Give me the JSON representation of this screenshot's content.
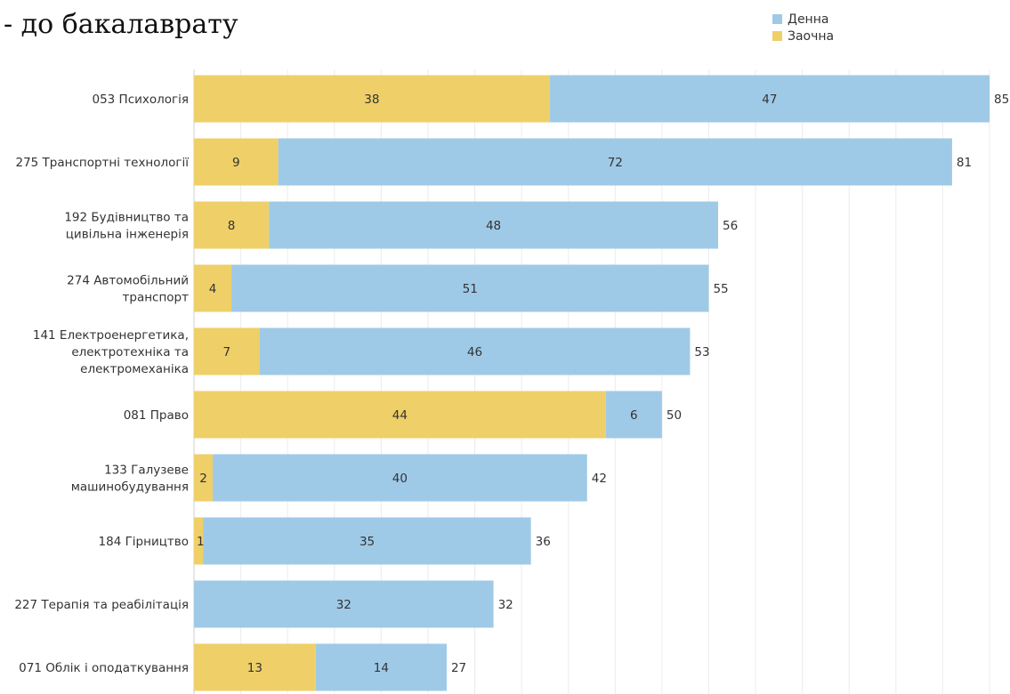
{
  "chart_data": {
    "type": "bar",
    "orientation": "horizontal",
    "stacked": true,
    "title": "- до бакалаврату",
    "categories": [
      [
        "053 Психологія"
      ],
      [
        "275 Транспортні технології"
      ],
      [
        "192 Будівництво та",
        "цивільна інженерія"
      ],
      [
        "274 Автомобільний",
        "транспорт"
      ],
      [
        "141 Електроенергетика,",
        "електротехніка та",
        "електромеханіка"
      ],
      [
        "081 Право"
      ],
      [
        "133 Галузеве",
        "машинобудування"
      ],
      [
        "184 Гірництво"
      ],
      [
        "227 Терапія та реабілітація"
      ],
      [
        "071 Облік і оподаткування"
      ]
    ],
    "series": [
      {
        "name": "Заочна",
        "color": "#EFCF68",
        "values": [
          38,
          9,
          8,
          4,
          7,
          44,
          2,
          1,
          0,
          13
        ]
      },
      {
        "name": "Денна",
        "color": "#9FCAE7",
        "values": [
          47,
          72,
          48,
          51,
          46,
          6,
          40,
          35,
          32,
          14
        ]
      }
    ],
    "totals": [
      85,
      81,
      56,
      55,
      53,
      50,
      42,
      36,
      32,
      27
    ],
    "xlim": [
      0,
      85
    ],
    "grid": true,
    "legend": "top-right",
    "legend_order": [
      "Денна",
      "Заочна"
    ]
  }
}
